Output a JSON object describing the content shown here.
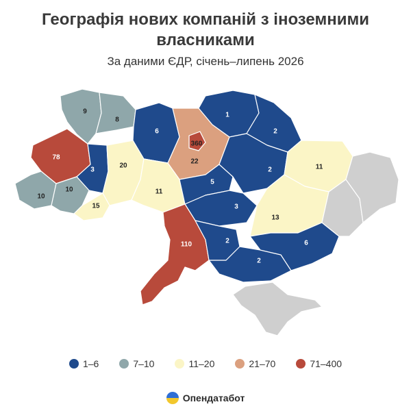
{
  "title": "Географія нових компаній з іноземними власниками",
  "subtitle": "За даними ЄДР, січень–липень 2026",
  "legend": [
    {
      "label": "1–6",
      "color": "#1f4a8c"
    },
    {
      "label": "7–10",
      "color": "#8fa7aa"
    },
    {
      "label": "11–20",
      "color": "#fbf5c6"
    },
    {
      "label": "21–70",
      "color": "#dba07f"
    },
    {
      "label": "71–400",
      "color": "#b84a3b"
    }
  ],
  "no_data_color": "#cfcfcf",
  "brand": "Опендатабот",
  "regions": [
    {
      "id": "volyn",
      "value": "9",
      "label_color": "#222222"
    },
    {
      "id": "rivne",
      "value": "8",
      "label_color": "#222222"
    },
    {
      "id": "zhytomyr",
      "value": "6",
      "label_color": "#ffffff"
    },
    {
      "id": "kyiv-city",
      "value": "360",
      "label_color": "#222222"
    },
    {
      "id": "kyiv-oblast",
      "value": "22",
      "label_color": "#222222"
    },
    {
      "id": "chernihiv",
      "value": "1",
      "label_color": "#ffffff"
    },
    {
      "id": "sumy",
      "value": "2",
      "label_color": "#ffffff"
    },
    {
      "id": "lviv",
      "value": "78",
      "label_color": "#ffffff"
    },
    {
      "id": "ternopil",
      "value": "3",
      "label_color": "#ffffff"
    },
    {
      "id": "khmelnytskyi",
      "value": "20",
      "label_color": "#222222"
    },
    {
      "id": "vinnytsia",
      "value": "11",
      "label_color": "#222222"
    },
    {
      "id": "cherkasy",
      "value": "5",
      "label_color": "#ffffff"
    },
    {
      "id": "poltava",
      "value": "2",
      "label_color": "#ffffff"
    },
    {
      "id": "kharkiv",
      "value": "11",
      "label_color": "#222222"
    },
    {
      "id": "zakarpattia",
      "value": "10",
      "label_color": "#222222"
    },
    {
      "id": "ivano-frankivsk",
      "value": "10",
      "label_color": "#222222"
    },
    {
      "id": "chernivtsi",
      "value": "15",
      "label_color": "#222222"
    },
    {
      "id": "kirovohrad",
      "value": "3",
      "label_color": "#ffffff"
    },
    {
      "id": "dnipropetrovsk",
      "value": "13",
      "label_color": "#222222"
    },
    {
      "id": "odesa",
      "value": "110",
      "label_color": "#ffffff"
    },
    {
      "id": "mykolaiv",
      "value": "2",
      "label_color": "#ffffff"
    },
    {
      "id": "kherson",
      "value": "2",
      "label_color": "#ffffff"
    },
    {
      "id": "zaporizhzhia",
      "value": "6",
      "label_color": "#ffffff"
    },
    {
      "id": "donetsk",
      "value": "",
      "label_color": ""
    },
    {
      "id": "luhansk",
      "value": "",
      "label_color": ""
    },
    {
      "id": "crimea",
      "value": "",
      "label_color": ""
    }
  ]
}
